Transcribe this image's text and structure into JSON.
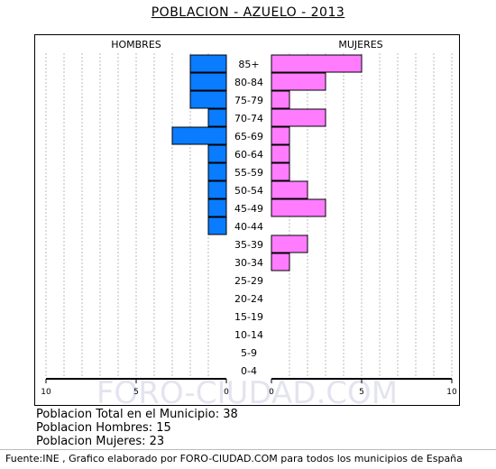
{
  "title": "POBLACION - AZUELO - 2013",
  "chart_data": {
    "type": "bar",
    "orientation": "horizontal-population-pyramid",
    "categories": [
      "85+",
      "80-84",
      "75-79",
      "70-74",
      "65-69",
      "60-64",
      "55-59",
      "50-54",
      "45-49",
      "40-44",
      "35-39",
      "30-34",
      "25-29",
      "20-24",
      "15-19",
      "10-14",
      "5-9",
      "0-4"
    ],
    "series": [
      {
        "name": "HOMBRES",
        "color": "#0a7cff",
        "values": [
          2,
          2,
          2,
          1,
          3,
          1,
          1,
          1,
          1,
          1,
          0,
          0,
          0,
          0,
          0,
          0,
          0,
          0
        ]
      },
      {
        "name": "MUJERES",
        "color": "#ff7cff",
        "values": [
          5,
          3,
          1,
          3,
          1,
          1,
          1,
          2,
          3,
          0,
          2,
          1,
          0,
          0,
          0,
          0,
          0,
          0
        ]
      }
    ],
    "xlim": [
      0,
      10
    ],
    "x_ticks": [
      "10",
      "5",
      "0",
      "0",
      "5",
      "10"
    ],
    "grid": true,
    "watermark": "FORO-CIUDAD.COM"
  },
  "stats": {
    "total": "Poblacion Total en el Municipio: 38",
    "men": "Poblacion Hombres: 15",
    "women": "Poblacion Mujeres: 23"
  },
  "footer": "Fuente:INE , Grafico elaborado por FORO-CIUDAD.COM para todos los municipios de España"
}
